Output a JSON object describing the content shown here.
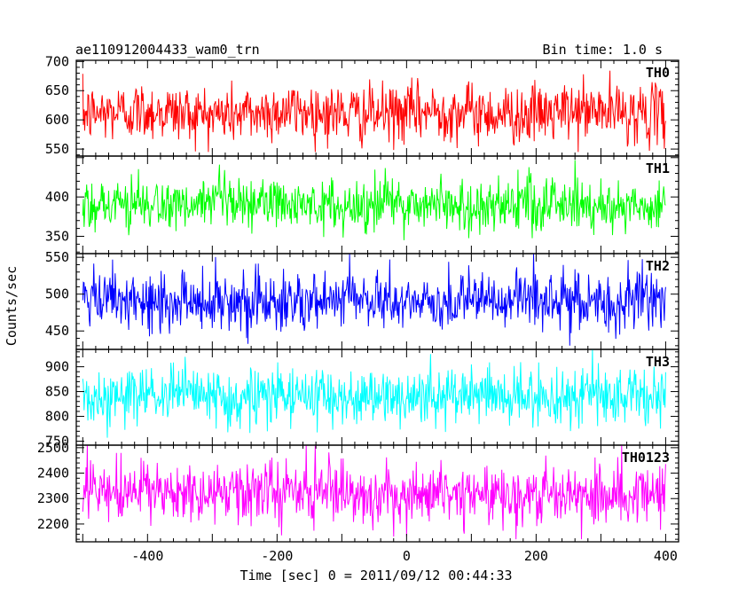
{
  "header": {
    "title": "ae110912004433_wam0_trn",
    "bin_time": "Bin time: 1.0 s"
  },
  "chart_data": {
    "type": "line",
    "xlabel": "Time [sec] 0 = 2011/09/12 00:44:33",
    "ylabel": "Counts/sec",
    "xlim": [
      -510,
      420
    ],
    "xticks": [
      -400,
      -200,
      0,
      200,
      400
    ],
    "x_range_of_data": [
      -500,
      400
    ],
    "bin_size_sec": 1.0,
    "grid": false,
    "panels": [
      {
        "name": "TH0",
        "color": "#ff0000",
        "ylim": [
          538,
          702
        ],
        "yticks": [
          550,
          600,
          650,
          700
        ],
        "mean": 612,
        "noise_range": [
          545,
          700
        ]
      },
      {
        "name": "TH1",
        "color": "#00ff00",
        "ylim": [
          328,
          452
        ],
        "yticks": [
          350,
          400
        ],
        "mean": 390,
        "noise_range": [
          345,
          450
        ]
      },
      {
        "name": "TH2",
        "color": "#0000ff",
        "ylim": [
          425,
          555
        ],
        "yticks": [
          450,
          500,
          550
        ],
        "mean": 490,
        "noise_range": [
          430,
          555
        ]
      },
      {
        "name": "TH3",
        "color": "#00ffff",
        "ylim": [
          742,
          935
        ],
        "yticks": [
          750,
          800,
          850,
          900
        ],
        "mean": 840,
        "noise_range": [
          755,
          935
        ]
      },
      {
        "name": "TH0123",
        "color": "#ff00ff",
        "ylim": [
          2130,
          2510
        ],
        "yticks": [
          2200,
          2300,
          2400,
          2500
        ],
        "mean": 2320,
        "noise_range": [
          2140,
          2510
        ]
      }
    ]
  }
}
